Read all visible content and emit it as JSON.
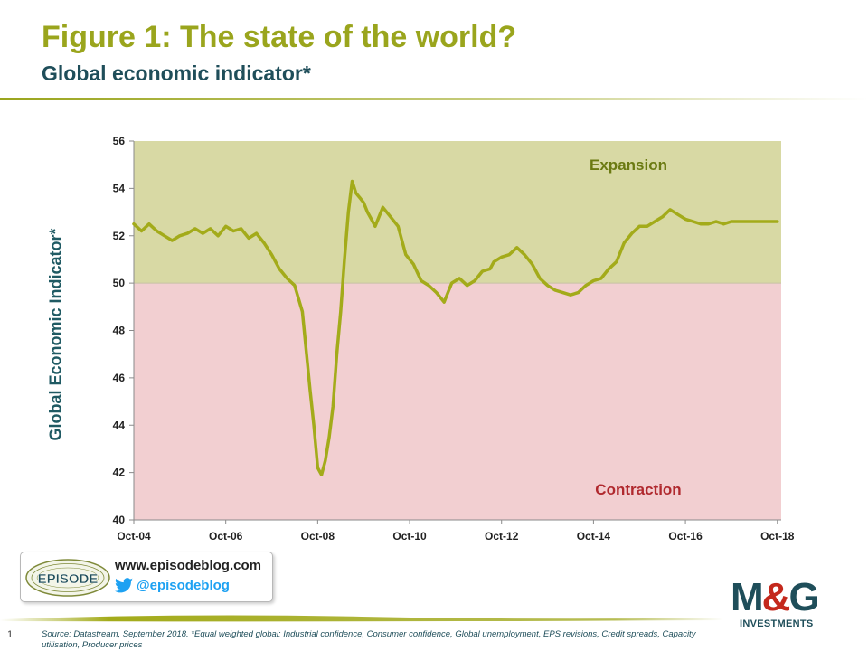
{
  "header": {
    "title": "Figure 1: The state of the world?",
    "subtitle": "Global economic indicator*"
  },
  "chart_data": {
    "type": "line",
    "ylabel": "Global Economic Indicator*",
    "xlabel": "",
    "ylim": [
      40,
      56
    ],
    "yticks": [
      40,
      42,
      44,
      46,
      48,
      50,
      52,
      54,
      56
    ],
    "xlim": [
      "2004-10",
      "2018-11"
    ],
    "xticks": [
      {
        "label": "Oct-04",
        "date": "2004-10"
      },
      {
        "label": "Oct-06",
        "date": "2006-10"
      },
      {
        "label": "Oct-08",
        "date": "2008-10"
      },
      {
        "label": "Oct-10",
        "date": "2010-10"
      },
      {
        "label": "Oct-12",
        "date": "2012-10"
      },
      {
        "label": "Oct-14",
        "date": "2014-10"
      },
      {
        "label": "Oct-16",
        "date": "2016-10"
      },
      {
        "label": "Oct-18",
        "date": "2018-10"
      }
    ],
    "threshold": 50,
    "regions": [
      {
        "label": "Expansion",
        "from": 50,
        "to": 56,
        "color": "#d8d9a4",
        "text_color": "#6b7a12"
      },
      {
        "label": "Contraction",
        "from": 40,
        "to": 50,
        "color": "#f2cfd1",
        "text_color": "#b0292e"
      }
    ],
    "line_color": "#a3ab1a",
    "grid": false,
    "series": [
      {
        "name": "",
        "x": [
          "2004-10",
          "2004-12",
          "2005-02",
          "2005-04",
          "2005-06",
          "2005-08",
          "2005-10",
          "2005-12",
          "2006-02",
          "2006-04",
          "2006-06",
          "2006-08",
          "2006-10",
          "2006-12",
          "2007-02",
          "2007-04",
          "2007-06",
          "2007-08",
          "2007-10",
          "2007-12",
          "2008-02",
          "2008-04",
          "2008-06",
          "2008-08",
          "2008-09",
          "2008-10",
          "2008-11",
          "2008-12",
          "2009-01",
          "2009-02",
          "2009-03",
          "2009-04",
          "2009-05",
          "2009-06",
          "2009-07",
          "2009-08",
          "2009-09",
          "2009-10",
          "2009-11",
          "2009-12",
          "2010-01",
          "2010-03",
          "2010-05",
          "2010-07",
          "2010-09",
          "2010-11",
          "2011-01",
          "2011-03",
          "2011-05",
          "2011-07",
          "2011-09",
          "2011-11",
          "2012-01",
          "2012-03",
          "2012-05",
          "2012-07",
          "2012-08",
          "2012-10",
          "2012-12",
          "2013-02",
          "2013-04",
          "2013-06",
          "2013-08",
          "2013-10",
          "2013-12",
          "2014-02",
          "2014-04",
          "2014-06",
          "2014-08",
          "2014-10",
          "2014-12",
          "2015-02",
          "2015-04",
          "2015-06",
          "2015-08",
          "2015-10",
          "2015-12",
          "2016-02",
          "2016-04",
          "2016-06",
          "2016-08",
          "2016-10",
          "2016-12",
          "2017-02",
          "2017-04",
          "2017-06",
          "2017-08",
          "2017-10",
          "2017-12",
          "2018-02",
          "2018-04",
          "2018-06",
          "2018-08",
          "2018-10"
        ],
        "values": [
          52.5,
          52.2,
          52.5,
          52.2,
          52.0,
          51.8,
          52.0,
          52.1,
          52.3,
          52.1,
          52.3,
          52.0,
          52.4,
          52.2,
          52.3,
          51.9,
          52.1,
          51.7,
          51.2,
          50.6,
          50.2,
          49.9,
          48.8,
          45.5,
          44.0,
          42.2,
          41.9,
          42.5,
          43.5,
          44.8,
          47.0,
          48.8,
          51.0,
          53.0,
          54.3,
          53.8,
          53.6,
          53.4,
          53.0,
          52.7,
          52.4,
          53.2,
          52.8,
          52.4,
          51.2,
          50.8,
          50.1,
          49.9,
          49.6,
          49.2,
          50.0,
          50.2,
          49.9,
          50.1,
          50.5,
          50.6,
          50.9,
          51.1,
          51.2,
          51.5,
          51.2,
          50.8,
          50.2,
          49.9,
          49.7,
          49.6,
          49.5,
          49.6,
          49.9,
          50.1,
          50.2,
          50.6,
          50.9,
          51.7,
          52.1,
          52.4,
          52.4,
          52.6,
          52.8,
          53.1,
          52.9,
          52.7,
          52.6,
          52.5,
          52.5,
          52.6,
          52.5,
          52.6,
          52.6,
          52.6,
          52.6,
          52.6,
          52.6,
          52.6
        ]
      }
    ]
  },
  "blog": {
    "logo_text": "EPISODE",
    "url": "www.episodeblog.com",
    "handle": "@episodeblog"
  },
  "brand": {
    "name_left": "M",
    "name_amp": "&",
    "name_right": "G",
    "sub": "INVESTMENTS",
    "navy": "#1f4e5a",
    "red": "#c4281c"
  },
  "footer": {
    "page_number": "1",
    "source": "Source: Datastream, September 2018. *Equal weighted global: Industrial confidence, Consumer confidence, Global unemployment, EPS revisions, Credit spreads, Capacity utilisation, Producer prices"
  }
}
